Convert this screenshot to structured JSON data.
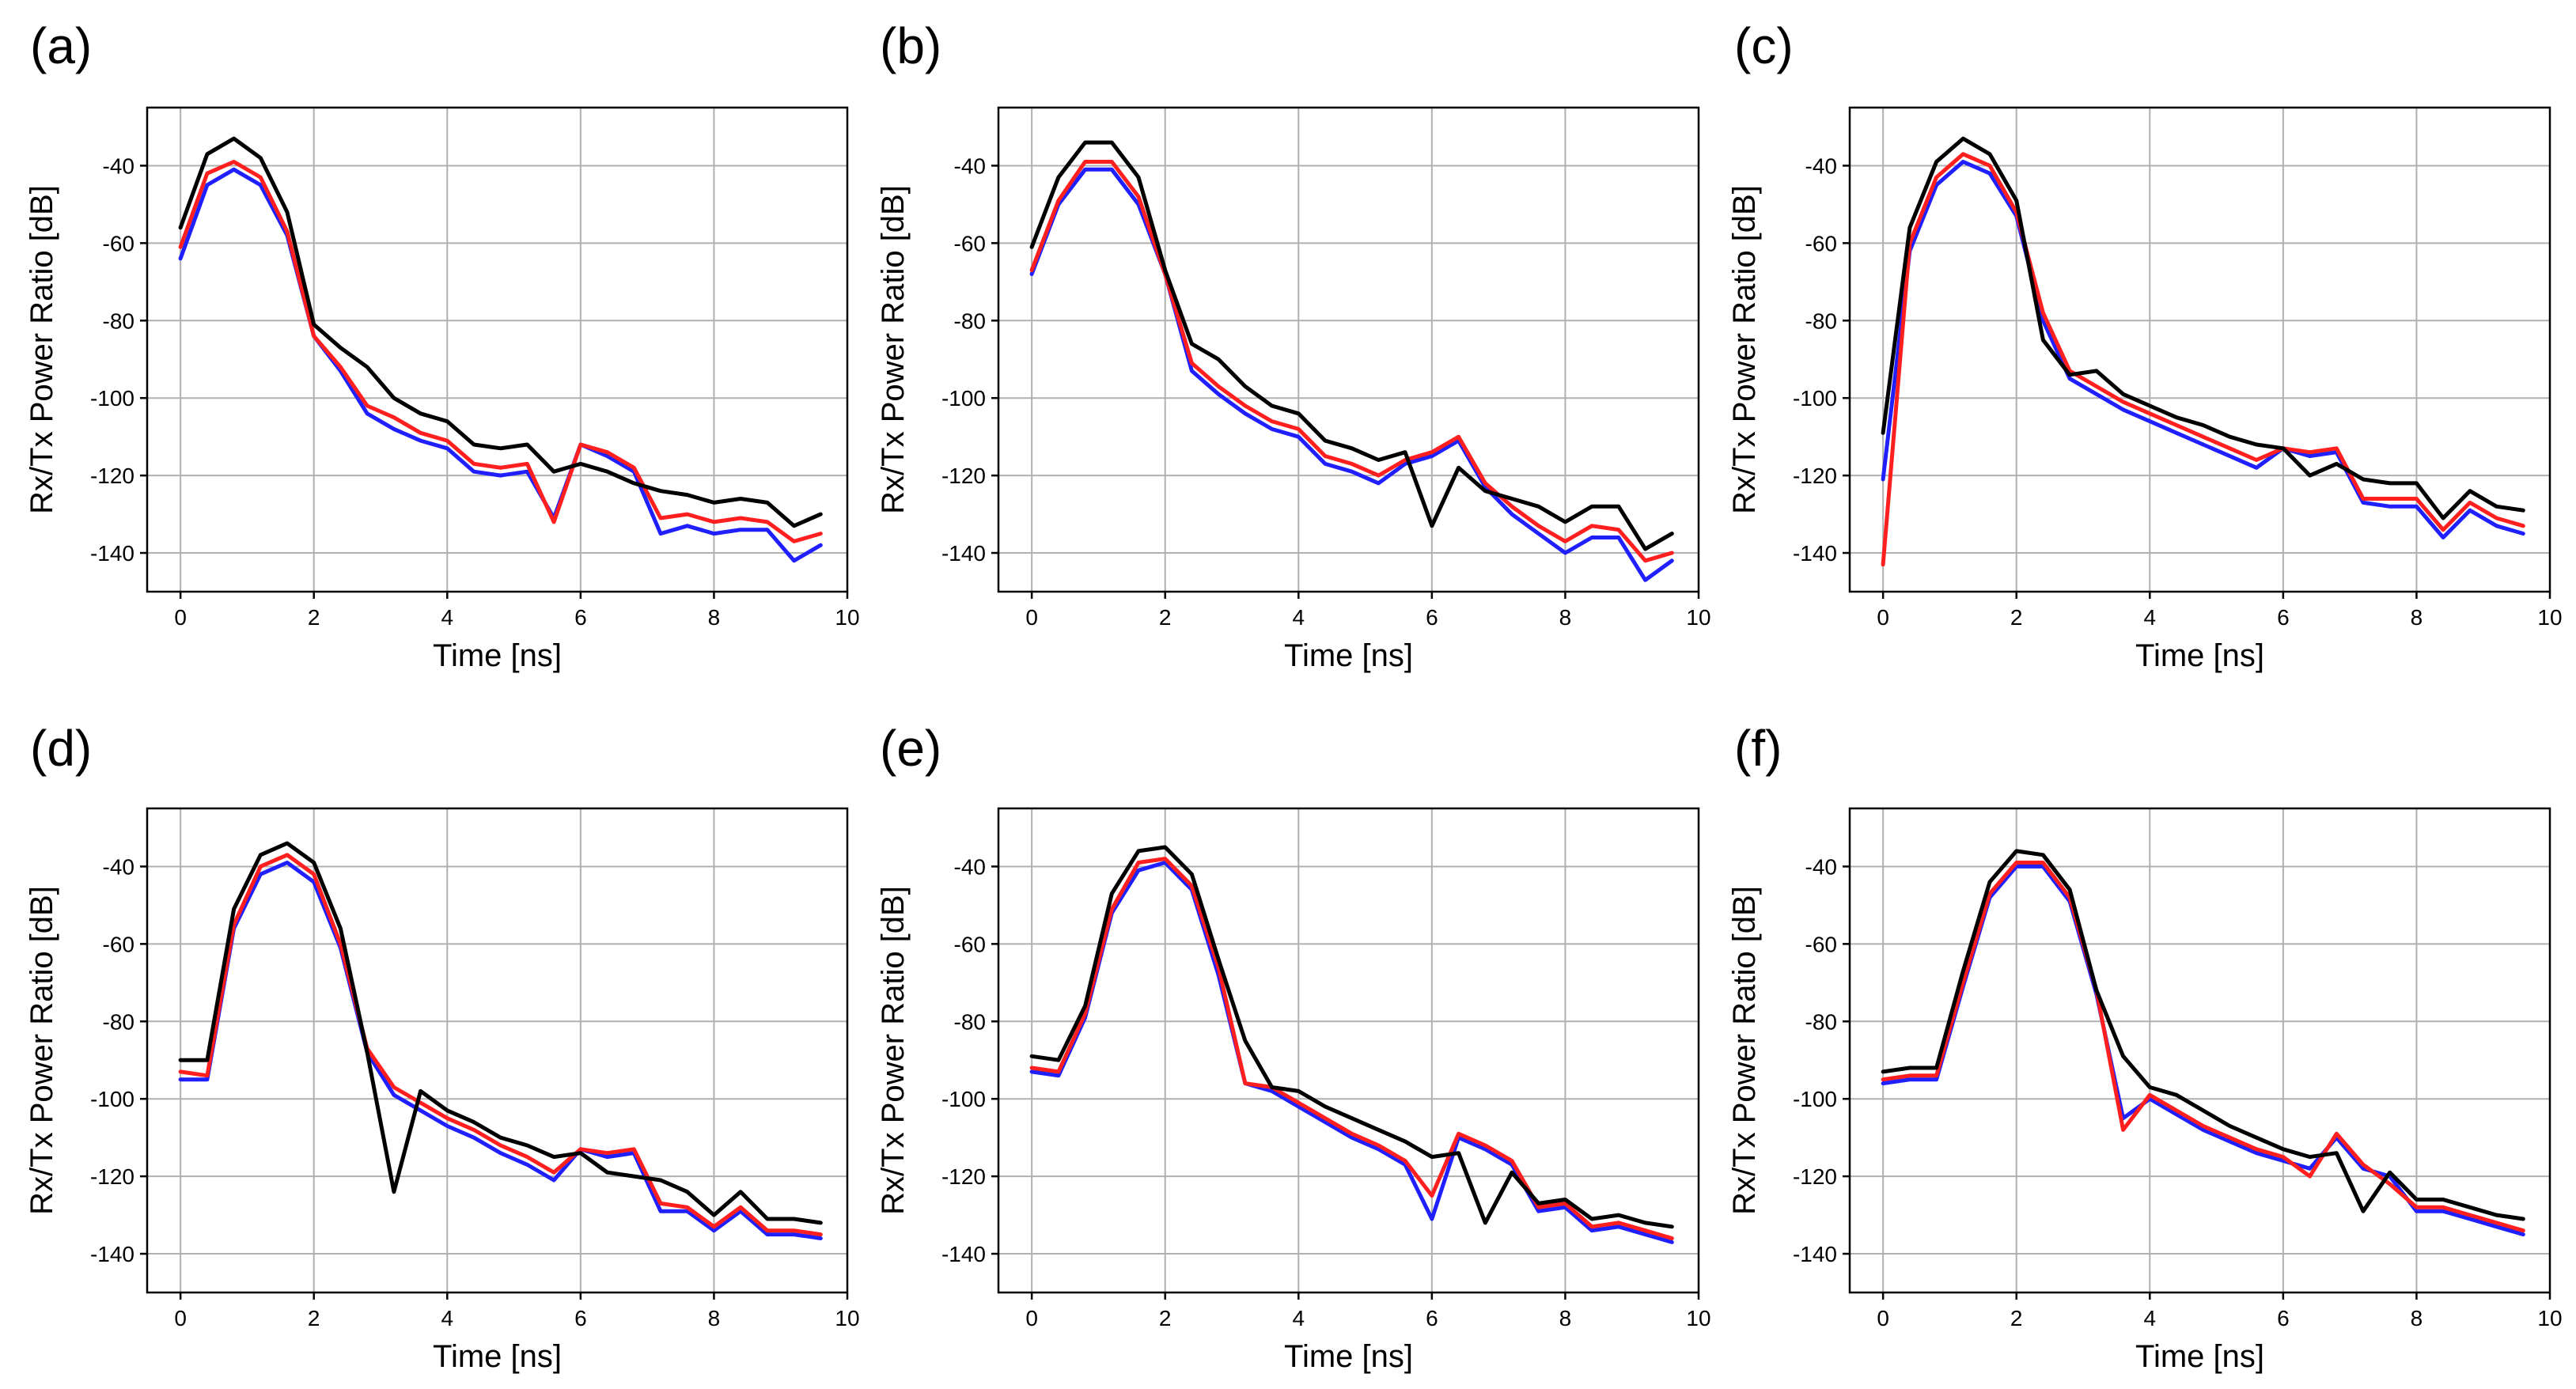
{
  "colors": {
    "blue": "#1f1fff",
    "red": "#ff1f1f",
    "black": "#000000",
    "grid": "#b0b0b0"
  },
  "chart_data": [
    {
      "type": "line",
      "panel_label": "(a)",
      "xlabel": "Time [ns]",
      "ylabel": "Rx/Tx Power Ratio [dB]",
      "xlim": [
        -0.5,
        10
      ],
      "ylim": [
        -150,
        -25
      ],
      "xticks": [
        0,
        2,
        4,
        6,
        8,
        10
      ],
      "yticks": [
        -140,
        -120,
        -100,
        -80,
        -60,
        -40
      ],
      "grid": true,
      "x": [
        0,
        0.4,
        0.8,
        1.2,
        1.6,
        2,
        2.4,
        2.8,
        3.2,
        3.6,
        4,
        4.4,
        4.8,
        5.2,
        5.6,
        6,
        6.4,
        6.8,
        7.2,
        7.6,
        8,
        8.4,
        8.8,
        9.2,
        9.6
      ],
      "series": [
        {
          "color": "blue",
          "values": [
            -64,
            -45,
            -41,
            -45,
            -58,
            -84,
            -93,
            -104,
            -108,
            -111,
            -113,
            -119,
            -120,
            -119,
            -131,
            -112,
            -115,
            -119,
            -135,
            -133,
            -135,
            -134,
            -134,
            -142,
            -138
          ]
        },
        {
          "color": "red",
          "values": [
            -61,
            -42,
            -39,
            -43,
            -57,
            -84,
            -92,
            -102,
            -105,
            -109,
            -111,
            -117,
            -118,
            -117,
            -132,
            -112,
            -114,
            -118,
            -131,
            -130,
            -132,
            -131,
            -132,
            -137,
            -135
          ]
        },
        {
          "color": "black",
          "values": [
            -56,
            -37,
            -33,
            -38,
            -52,
            -81,
            -87,
            -92,
            -100,
            -104,
            -106,
            -112,
            -113,
            -112,
            -119,
            -117,
            -119,
            -122,
            -124,
            -125,
            -127,
            -126,
            -127,
            -133,
            -130
          ]
        }
      ]
    },
    {
      "type": "line",
      "panel_label": "(b)",
      "xlabel": "Time [ns]",
      "ylabel": "Rx/Tx Power Ratio [dB]",
      "xlim": [
        -0.5,
        10
      ],
      "ylim": [
        -150,
        -25
      ],
      "xticks": [
        0,
        2,
        4,
        6,
        8,
        10
      ],
      "yticks": [
        -140,
        -120,
        -100,
        -80,
        -60,
        -40
      ],
      "grid": true,
      "x": [
        0,
        0.4,
        0.8,
        1.2,
        1.6,
        2,
        2.4,
        2.8,
        3.2,
        3.6,
        4,
        4.4,
        4.8,
        5.2,
        5.6,
        6,
        6.4,
        6.8,
        7.2,
        7.6,
        8,
        8.4,
        8.8,
        9.2,
        9.6
      ],
      "series": [
        {
          "color": "blue",
          "values": [
            -68,
            -50,
            -41,
            -41,
            -50,
            -68,
            -93,
            -99,
            -104,
            -108,
            -110,
            -117,
            -119,
            -122,
            -117,
            -115,
            -111,
            -123,
            -130,
            -135,
            -140,
            -136,
            -136,
            -147,
            -142
          ]
        },
        {
          "color": "red",
          "values": [
            -67,
            -49,
            -39,
            -39,
            -48,
            -68,
            -91,
            -97,
            -102,
            -106,
            -108,
            -115,
            -117,
            -120,
            -116,
            -114,
            -110,
            -122,
            -128,
            -133,
            -137,
            -133,
            -134,
            -142,
            -140
          ]
        },
        {
          "color": "black",
          "values": [
            -61,
            -43,
            -34,
            -34,
            -43,
            -67,
            -86,
            -90,
            -97,
            -102,
            -104,
            -111,
            -113,
            -116,
            -114,
            -133,
            -118,
            -124,
            -126,
            -128,
            -132,
            -128,
            -128,
            -139,
            -135
          ]
        }
      ]
    },
    {
      "type": "line",
      "panel_label": "(c)",
      "xlabel": "Time [ns]",
      "ylabel": "Rx/Tx Power Ratio [dB]",
      "xlim": [
        -0.5,
        10
      ],
      "ylim": [
        -150,
        -25
      ],
      "xticks": [
        0,
        2,
        4,
        6,
        8,
        10
      ],
      "yticks": [
        -140,
        -120,
        -100,
        -80,
        -60,
        -40
      ],
      "grid": true,
      "x": [
        0,
        0.4,
        0.8,
        1.2,
        1.6,
        2,
        2.4,
        2.8,
        3.2,
        3.6,
        4,
        4.4,
        4.8,
        5.2,
        5.6,
        6,
        6.4,
        6.8,
        7.2,
        7.6,
        8,
        8.4,
        8.8,
        9.2,
        9.6
      ],
      "series": [
        {
          "color": "blue",
          "values": [
            -121,
            -62,
            -45,
            -39,
            -42,
            -53,
            -80,
            -95,
            -99,
            -103,
            -106,
            -109,
            -112,
            -115,
            -118,
            -113,
            -115,
            -114,
            -127,
            -128,
            -128,
            -136,
            -129,
            -133,
            -135
          ]
        },
        {
          "color": "red",
          "values": [
            -143,
            -60,
            -43,
            -37,
            -40,
            -52,
            -78,
            -93,
            -97,
            -101,
            -104,
            -107,
            -110,
            -113,
            -116,
            -113,
            -114,
            -113,
            -126,
            -126,
            -126,
            -134,
            -127,
            -131,
            -133
          ]
        },
        {
          "color": "black",
          "values": [
            -109,
            -56,
            -39,
            -33,
            -37,
            -49,
            -85,
            -94,
            -93,
            -99,
            -102,
            -105,
            -107,
            -110,
            -112,
            -113,
            -120,
            -117,
            -121,
            -122,
            -122,
            -131,
            -124,
            -128,
            -129
          ]
        }
      ]
    },
    {
      "type": "line",
      "panel_label": "(d)",
      "xlabel": "Time [ns]",
      "ylabel": "Rx/Tx Power Ratio [dB]",
      "xlim": [
        -0.5,
        10
      ],
      "ylim": [
        -150,
        -25
      ],
      "xticks": [
        0,
        2,
        4,
        6,
        8,
        10
      ],
      "yticks": [
        -140,
        -120,
        -100,
        -80,
        -60,
        -40
      ],
      "grid": true,
      "x": [
        0,
        0.4,
        0.8,
        1.2,
        1.6,
        2,
        2.4,
        2.8,
        3.2,
        3.6,
        4,
        4.4,
        4.8,
        5.2,
        5.6,
        6,
        6.4,
        6.8,
        7.2,
        7.6,
        8,
        8.4,
        8.8,
        9.2,
        9.6
      ],
      "series": [
        {
          "color": "blue",
          "values": [
            -95,
            -95,
            -56,
            -42,
            -39,
            -44,
            -61,
            -88,
            -99,
            -103,
            -107,
            -110,
            -114,
            -117,
            -121,
            -113,
            -115,
            -114,
            -129,
            -129,
            -134,
            -129,
            -135,
            -135,
            -136
          ]
        },
        {
          "color": "red",
          "values": [
            -93,
            -94,
            -55,
            -40,
            -37,
            -42,
            -60,
            -87,
            -97,
            -101,
            -105,
            -108,
            -112,
            -115,
            -119,
            -113,
            -114,
            -113,
            -127,
            -128,
            -133,
            -128,
            -134,
            -134,
            -135
          ]
        },
        {
          "color": "black",
          "values": [
            -90,
            -90,
            -51,
            -37,
            -34,
            -39,
            -56,
            -88,
            -124,
            -98,
            -103,
            -106,
            -110,
            -112,
            -115,
            -114,
            -119,
            -120,
            -121,
            -124,
            -130,
            -124,
            -131,
            -131,
            -132
          ]
        }
      ]
    },
    {
      "type": "line",
      "panel_label": "(e)",
      "xlabel": "Time [ns]",
      "ylabel": "Rx/Tx Power Ratio [dB]",
      "xlim": [
        -0.5,
        10
      ],
      "ylim": [
        -150,
        -25
      ],
      "xticks": [
        0,
        2,
        4,
        6,
        8,
        10
      ],
      "yticks": [
        -140,
        -120,
        -100,
        -80,
        -60,
        -40
      ],
      "grid": true,
      "x": [
        0,
        0.4,
        0.8,
        1.2,
        1.6,
        2,
        2.4,
        2.8,
        3.2,
        3.6,
        4,
        4.4,
        4.8,
        5.2,
        5.6,
        6,
        6.4,
        6.8,
        7.2,
        7.6,
        8,
        8.4,
        8.8,
        9.2,
        9.6
      ],
      "series": [
        {
          "color": "blue",
          "values": [
            -93,
            -94,
            -79,
            -52,
            -41,
            -39,
            -46,
            -68,
            -96,
            -98,
            -102,
            -106,
            -110,
            -113,
            -117,
            -131,
            -110,
            -113,
            -117,
            -129,
            -128,
            -134,
            -133,
            -135,
            -137
          ]
        },
        {
          "color": "red",
          "values": [
            -92,
            -93,
            -78,
            -51,
            -39,
            -38,
            -45,
            -66,
            -96,
            -97,
            -101,
            -105,
            -109,
            -112,
            -116,
            -125,
            -109,
            -112,
            -116,
            -128,
            -127,
            -133,
            -132,
            -134,
            -136
          ]
        },
        {
          "color": "black",
          "values": [
            -89,
            -90,
            -76,
            -47,
            -36,
            -35,
            -42,
            -64,
            -85,
            -97,
            -98,
            -102,
            -105,
            -108,
            -111,
            -115,
            -114,
            -132,
            -119,
            -127,
            -126,
            -131,
            -130,
            -132,
            -133
          ]
        }
      ]
    },
    {
      "type": "line",
      "panel_label": "(f)",
      "xlabel": "Time [ns]",
      "ylabel": "Rx/Tx Power Ratio [dB]",
      "xlim": [
        -0.5,
        10
      ],
      "ylim": [
        -150,
        -25
      ],
      "xticks": [
        0,
        2,
        4,
        6,
        8,
        10
      ],
      "yticks": [
        -140,
        -120,
        -100,
        -80,
        -60,
        -40
      ],
      "grid": true,
      "x": [
        0,
        0.4,
        0.8,
        1.2,
        1.6,
        2,
        2.4,
        2.8,
        3.2,
        3.6,
        4,
        4.4,
        4.8,
        5.2,
        5.6,
        6,
        6.4,
        6.8,
        7.2,
        7.6,
        8,
        8.4,
        8.8,
        9.2,
        9.6
      ],
      "series": [
        {
          "color": "blue",
          "values": [
            -96,
            -95,
            -95,
            -71,
            -48,
            -40,
            -40,
            -49,
            -73,
            -105,
            -100,
            -104,
            -108,
            -111,
            -114,
            -116,
            -118,
            -110,
            -118,
            -120,
            -129,
            -129,
            -131,
            -133,
            -135
          ]
        },
        {
          "color": "red",
          "values": [
            -95,
            -94,
            -94,
            -70,
            -47,
            -39,
            -39,
            -48,
            -72,
            -108,
            -99,
            -103,
            -107,
            -110,
            -113,
            -115,
            -120,
            -109,
            -117,
            -122,
            -128,
            -128,
            -130,
            -132,
            -134
          ]
        },
        {
          "color": "black",
          "values": [
            -93,
            -92,
            -92,
            -67,
            -44,
            -36,
            -37,
            -46,
            -72,
            -89,
            -97,
            -99,
            -103,
            -107,
            -110,
            -113,
            -115,
            -114,
            -129,
            -119,
            -126,
            -126,
            -128,
            -130,
            -131
          ]
        }
      ]
    }
  ]
}
